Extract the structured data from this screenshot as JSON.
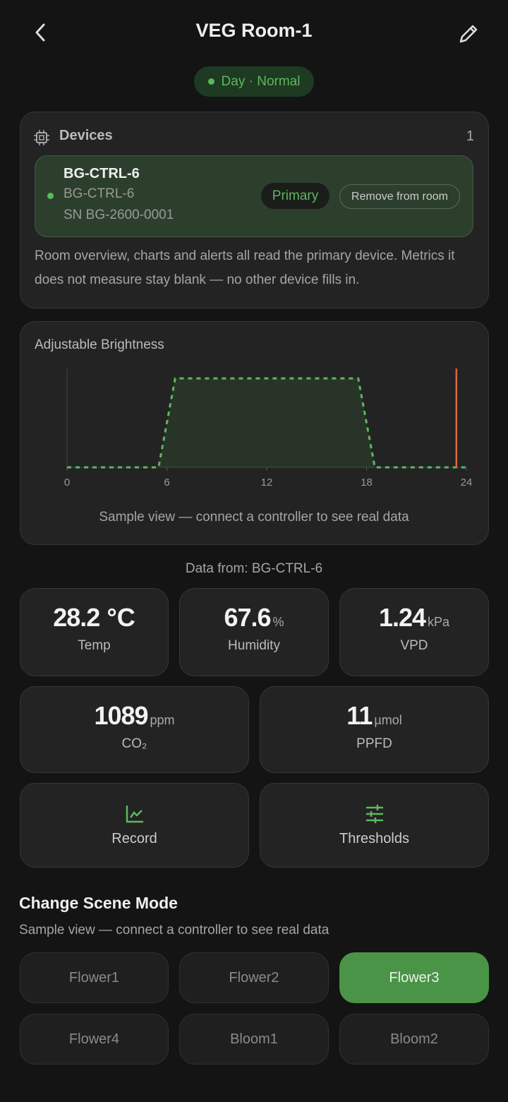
{
  "header": {
    "title": "VEG Room-1"
  },
  "status": "Day · Normal",
  "devices": {
    "title": "Devices",
    "count": 1,
    "device": {
      "name": "BG-CTRL-6",
      "model": "BG-CTRL-6",
      "serial": "SN BG-2600-0001",
      "badge": "Primary",
      "action": "Remove from room"
    },
    "note": "Room overview, charts and alerts all read the primary device. Metrics it does not measure stay blank — no other device fills in."
  },
  "chart_data": {
    "type": "line",
    "title": "Adjustable Brightness",
    "x": [
      0,
      5.5,
      6.5,
      17.5,
      18.5,
      24
    ],
    "series": [
      {
        "color": "#5cb85c",
        "values": [
          0,
          0,
          90,
          90,
          0,
          0
        ]
      }
    ],
    "xlim": [
      0,
      24
    ],
    "xticks": [
      0,
      6,
      12,
      18,
      24
    ],
    "ylim": [
      0,
      100
    ],
    "now_marker": 23.4,
    "now_marker_color": "#e0663a",
    "caption": "Sample view — connect a controller to see real data"
  },
  "data_source": "Data from: BG-CTRL-6",
  "metrics": [
    {
      "value": 28.2,
      "unit": "°C",
      "label": "Temp"
    },
    {
      "value": 67.6,
      "unit": "%",
      "label": "Humidity"
    },
    {
      "value": 1.24,
      "unit": "kPa",
      "label": "VPD"
    },
    {
      "value": 1089,
      "unit": "ppm",
      "label": "CO₂"
    },
    {
      "value": 11,
      "unit": "µmol",
      "label": "PPFD"
    }
  ],
  "actions": [
    "Record",
    "Thresholds"
  ],
  "scene": {
    "title": "Change Scene Mode",
    "subtitle": "Sample view — connect a controller to see real data",
    "modes": [
      "Flower1",
      "Flower2",
      "Flower3",
      "Flower4",
      "Bloom1",
      "Bloom2"
    ],
    "active_index": 2
  }
}
